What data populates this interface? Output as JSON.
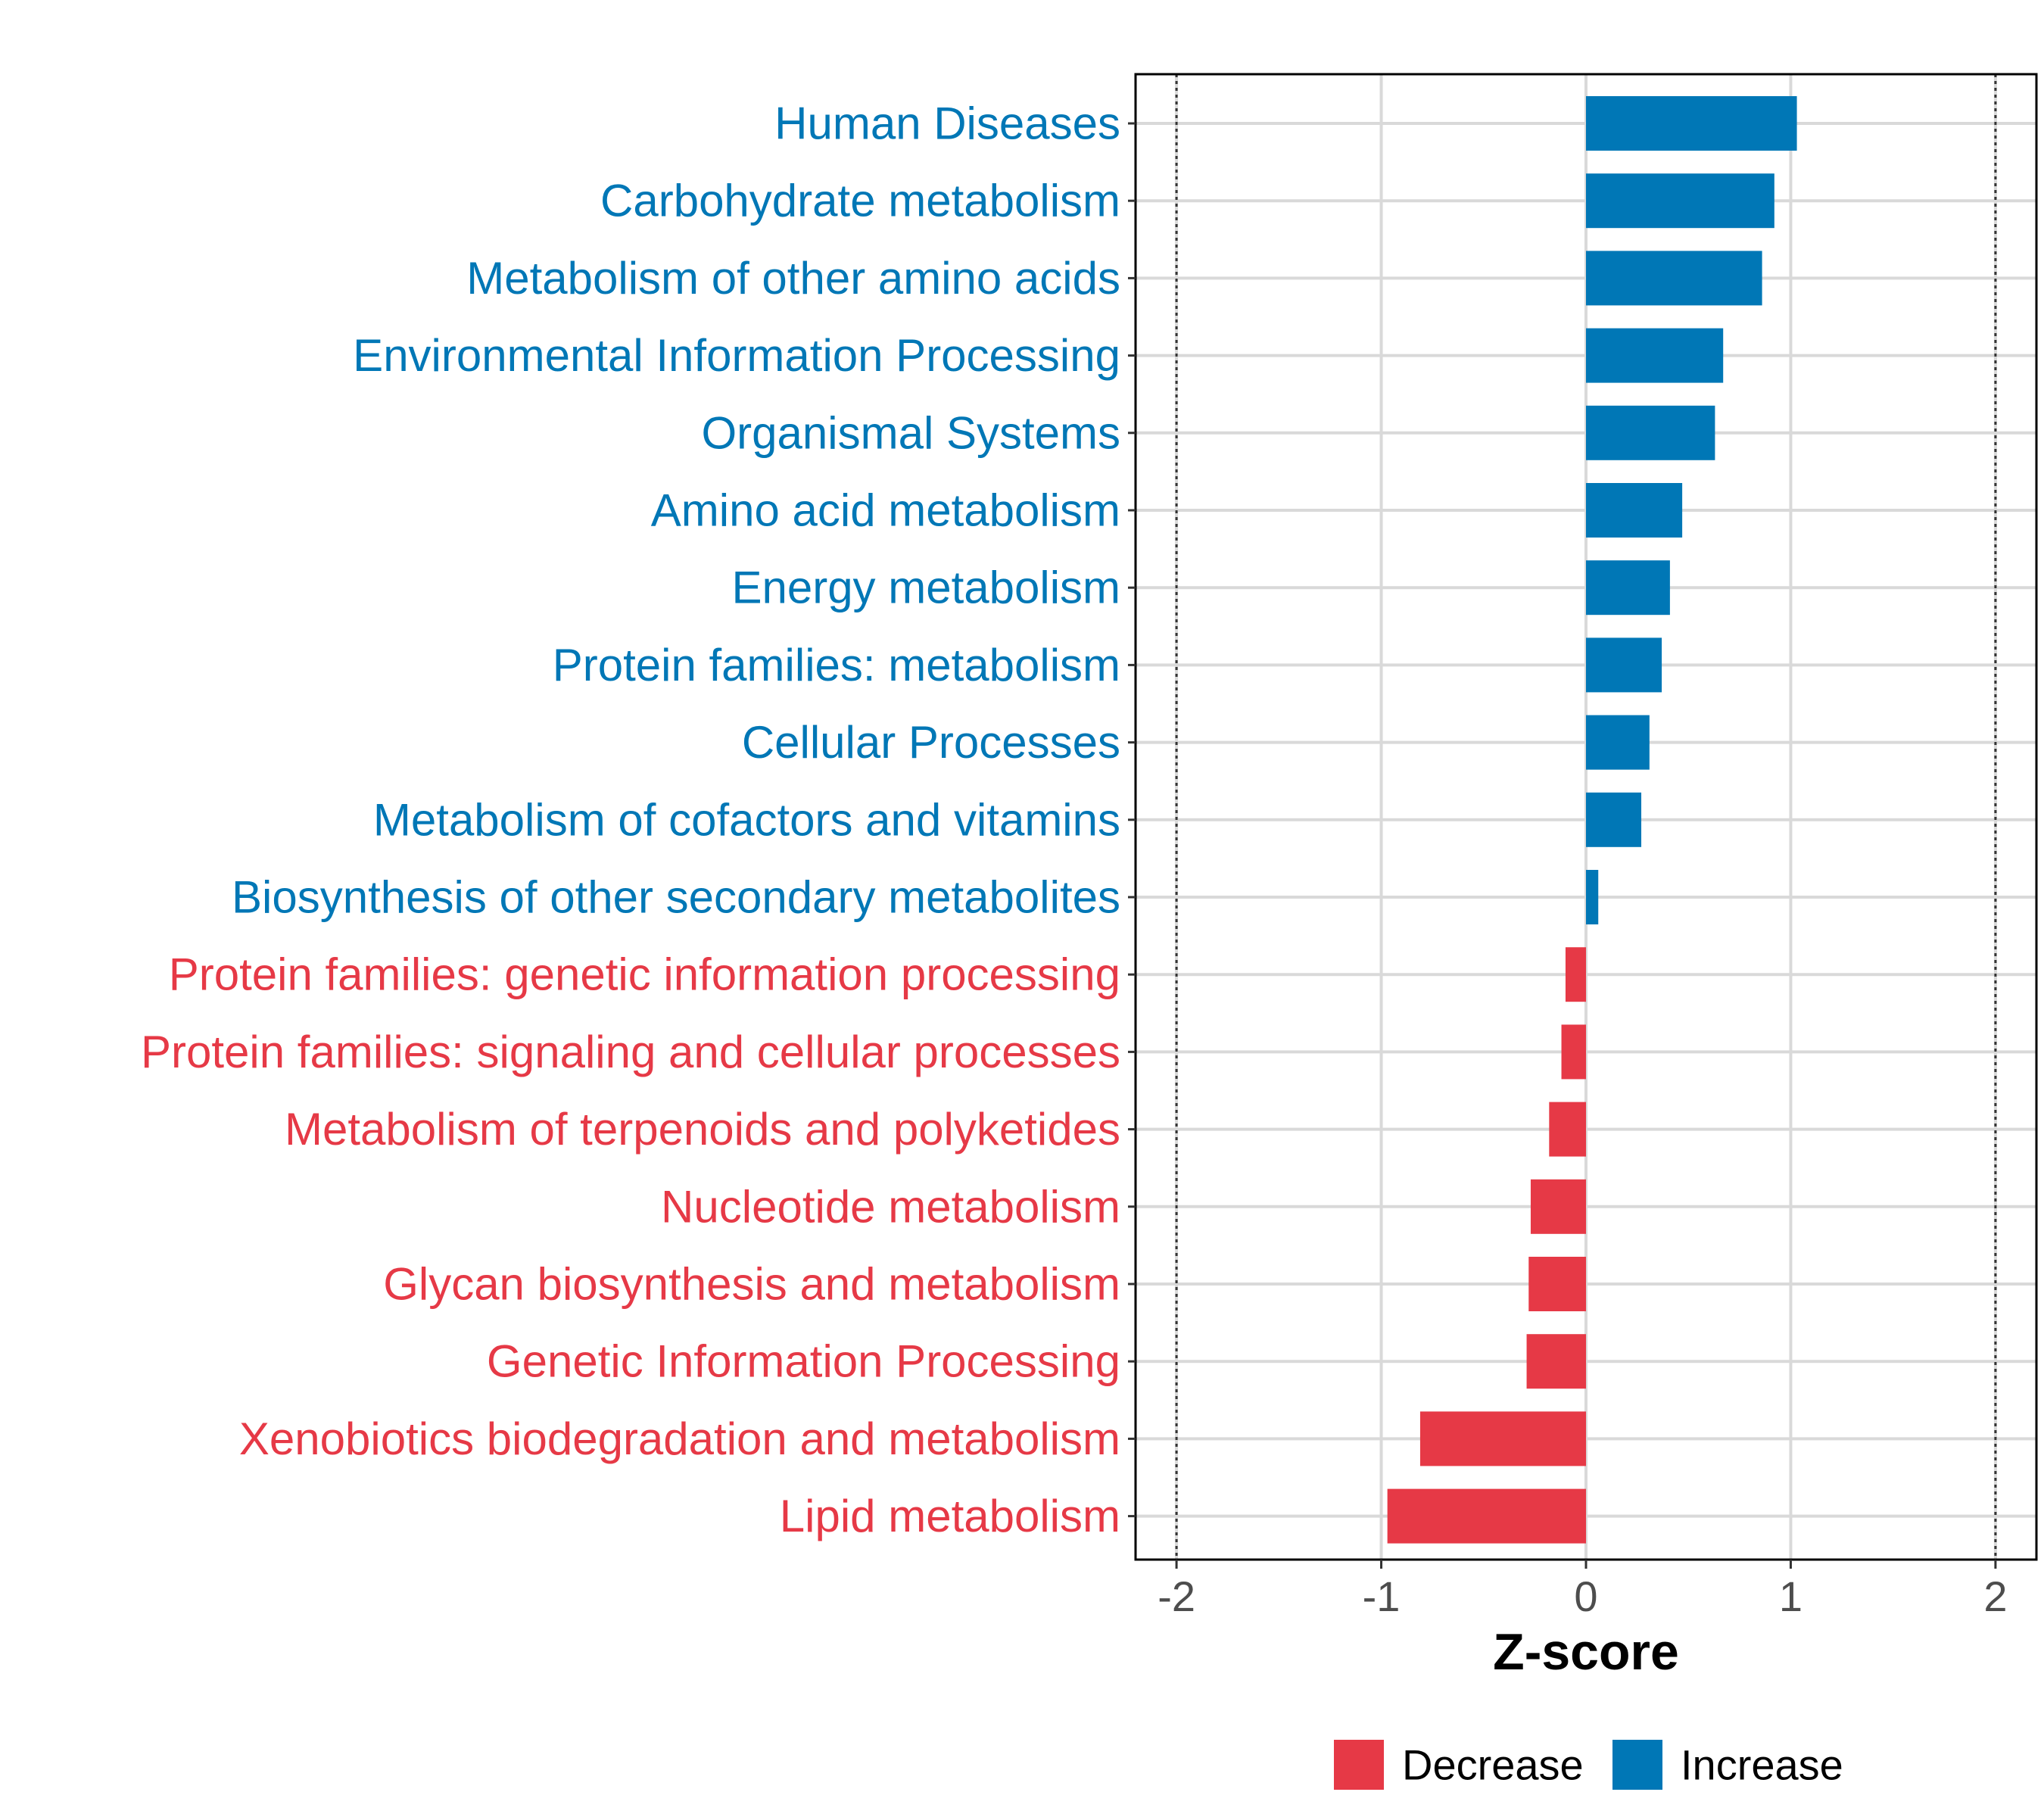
{
  "chart_data": {
    "type": "bar",
    "orientation": "horizontal",
    "xlabel": "Z-score",
    "xlim": [
      -2.2,
      2.2
    ],
    "xticks": [
      -2,
      -1,
      0,
      1,
      2
    ],
    "xtick_labels": [
      "-2",
      "-1",
      "0",
      "1",
      "2"
    ],
    "reference_lines": [
      -2,
      2
    ],
    "grid": true,
    "legend_position": "bottom",
    "colors": {
      "Decrease": "#E63946",
      "Increase": "#0077B6"
    },
    "legend": [
      {
        "label": "Decrease",
        "color": "#E63946"
      },
      {
        "label": "Increase",
        "color": "#0077B6"
      }
    ],
    "categories": [
      "Human Diseases",
      "Carbohydrate metabolism",
      "Metabolism of other amino acids",
      "Environmental Information Processing",
      "Organismal Systems",
      "Amino acid metabolism",
      "Energy metabolism",
      "Protein families: metabolism",
      "Cellular Processes",
      "Metabolism of cofactors and vitamins",
      "Biosynthesis of other secondary metabolites",
      "Protein families: genetic information processing",
      "Protein families: signaling and cellular processes",
      "Metabolism of terpenoids and polyketides",
      "Nucleotide metabolism",
      "Glycan biosynthesis and metabolism",
      "Genetic Information Processing",
      "Xenobiotics biodegradation and metabolism",
      "Lipid metabolism"
    ],
    "values": [
      1.03,
      0.92,
      0.86,
      0.67,
      0.63,
      0.47,
      0.41,
      0.37,
      0.31,
      0.27,
      0.06,
      -0.1,
      -0.12,
      -0.18,
      -0.27,
      -0.28,
      -0.29,
      -0.81,
      -0.97
    ],
    "groups": [
      "Increase",
      "Increase",
      "Increase",
      "Increase",
      "Increase",
      "Increase",
      "Increase",
      "Increase",
      "Increase",
      "Increase",
      "Increase",
      "Decrease",
      "Decrease",
      "Decrease",
      "Decrease",
      "Decrease",
      "Decrease",
      "Decrease",
      "Decrease"
    ]
  }
}
